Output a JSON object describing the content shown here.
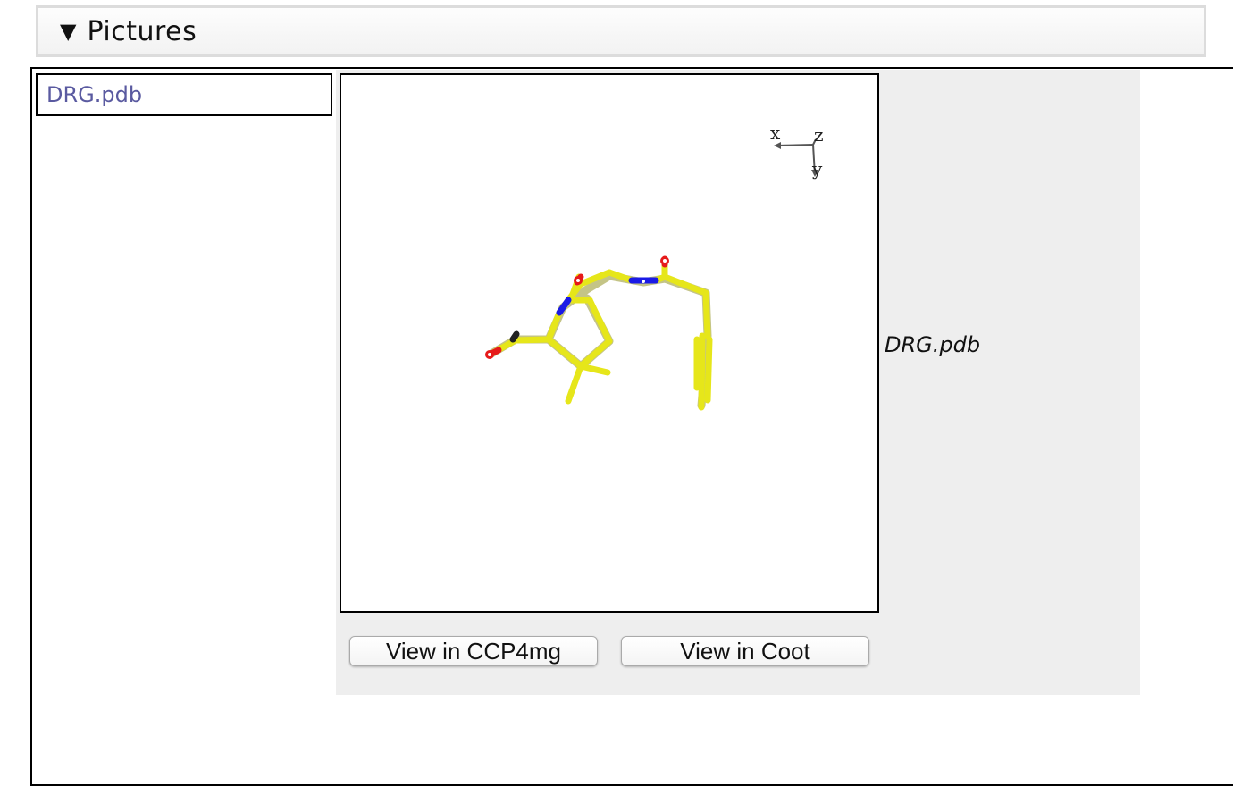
{
  "section": {
    "arrow": "▼",
    "title": "Pictures"
  },
  "file_list": {
    "items": [
      {
        "label": "DRG.pdb"
      }
    ]
  },
  "viewer": {
    "caption": "DRG.pdb",
    "axes": {
      "x": "x",
      "y": "y",
      "z": "z"
    },
    "colors": {
      "carbon": "#e6e61a",
      "nitrogen": "#1a1ae6",
      "oxygen": "#e61a1a"
    }
  },
  "buttons": {
    "ccp4mg": "View in CCP4mg",
    "coot": "View in Coot"
  }
}
